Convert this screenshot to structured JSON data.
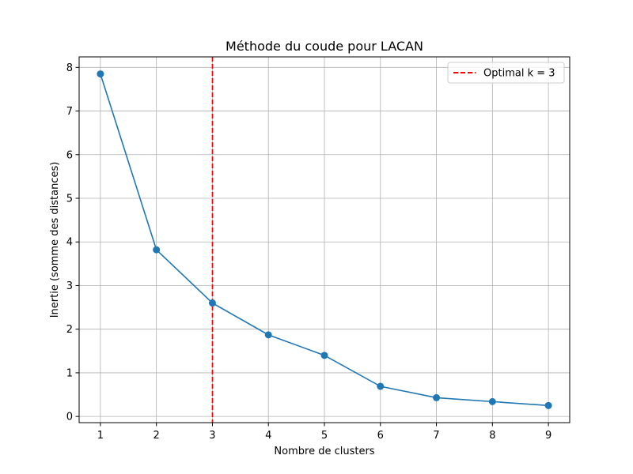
{
  "chart_data": {
    "type": "line",
    "title": "Méthode du coude pour LACAN",
    "xlabel": "Nombre de clusters",
    "ylabel": "Inertie (somme des distances)",
    "x": [
      1,
      2,
      3,
      4,
      5,
      6,
      7,
      8,
      9
    ],
    "series": [
      {
        "values": [
          7.85,
          3.82,
          2.6,
          1.87,
          1.4,
          0.69,
          0.43,
          0.34,
          0.25
        ],
        "color": "#1f77b4",
        "marker": "circle"
      }
    ],
    "xlim": [
      0.62,
      9.38
    ],
    "ylim": [
      -0.142,
      8.241
    ],
    "xticks": [
      1,
      2,
      3,
      4,
      5,
      6,
      7,
      8,
      9
    ],
    "yticks": [
      0,
      1,
      2,
      3,
      4,
      5,
      6,
      7,
      8
    ],
    "grid": true,
    "annotations": [
      {
        "type": "vline",
        "x": 3,
        "color": "#ff0000",
        "style": "dashed",
        "label": "Optimal k = 3"
      }
    ],
    "legend": {
      "placement": "top-right",
      "entries": [
        "Optimal k = 3"
      ]
    }
  }
}
